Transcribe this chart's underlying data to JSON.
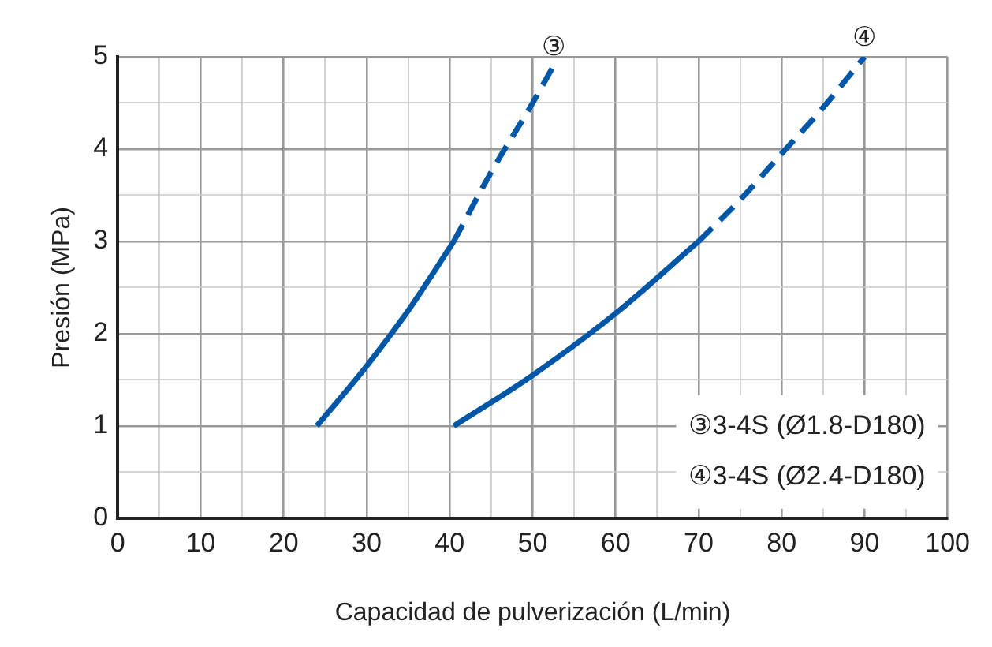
{
  "chart_data": {
    "type": "line",
    "xlabel": "Capacidad de pulverización (L/min)",
    "ylabel": "Presión (MPa)",
    "xlim": [
      0,
      100
    ],
    "ylim": [
      0,
      5
    ],
    "xticks": [
      0,
      {
        "value": 5,
        "label": null
      },
      10,
      {
        "value": 15,
        "label": null
      },
      20,
      {
        "value": 25,
        "label": null
      },
      30,
      {
        "value": 35,
        "label": null
      },
      40,
      {
        "value": 45,
        "label": null
      },
      50,
      {
        "value": 55,
        "label": null
      },
      60,
      {
        "value": 65,
        "label": null
      },
      70,
      {
        "value": 75,
        "label": null
      },
      80,
      {
        "value": 85,
        "label": null
      },
      90,
      {
        "value": 95,
        "label": null
      },
      100
    ],
    "yticks": [
      0,
      {
        "value": 0.5,
        "label": null
      },
      1,
      {
        "value": 1.5,
        "label": null
      },
      2,
      {
        "value": 2.5,
        "label": null
      },
      3,
      {
        "value": 3.5,
        "label": null
      },
      4,
      {
        "value": 4.5,
        "label": null
      },
      5
    ],
    "grid": true,
    "series": [
      {
        "color": "#0057a8",
        "line_style": "solid",
        "x": [
          24,
          30,
          35,
          40.5
        ],
        "values": [
          1,
          1.65,
          2.25,
          3
        ]
      },
      {
        "color": "#0057a8",
        "line_style": "dashed",
        "x": [
          40.5,
          45,
          50,
          52.5
        ],
        "values": [
          3,
          3.75,
          4.5,
          4.9
        ]
      },
      {
        "color": "#0057a8",
        "line_style": "solid",
        "x": [
          40.5,
          50,
          60,
          70
        ],
        "values": [
          1,
          1.55,
          2.22,
          3
        ]
      },
      {
        "color": "#0057a8",
        "line_style": "dashed",
        "x": [
          70,
          75,
          80,
          85,
          90
        ],
        "values": [
          3,
          3.45,
          3.95,
          4.45,
          5
        ]
      }
    ],
    "annotations": [
      {
        "text": "③",
        "x": 52.5,
        "y": 4.9
      },
      {
        "text": "④",
        "x": 90,
        "y": 5
      },
      "③3-4S (Ø1.8-D180)",
      "④3-4S (Ø2.4-D180)"
    ]
  }
}
